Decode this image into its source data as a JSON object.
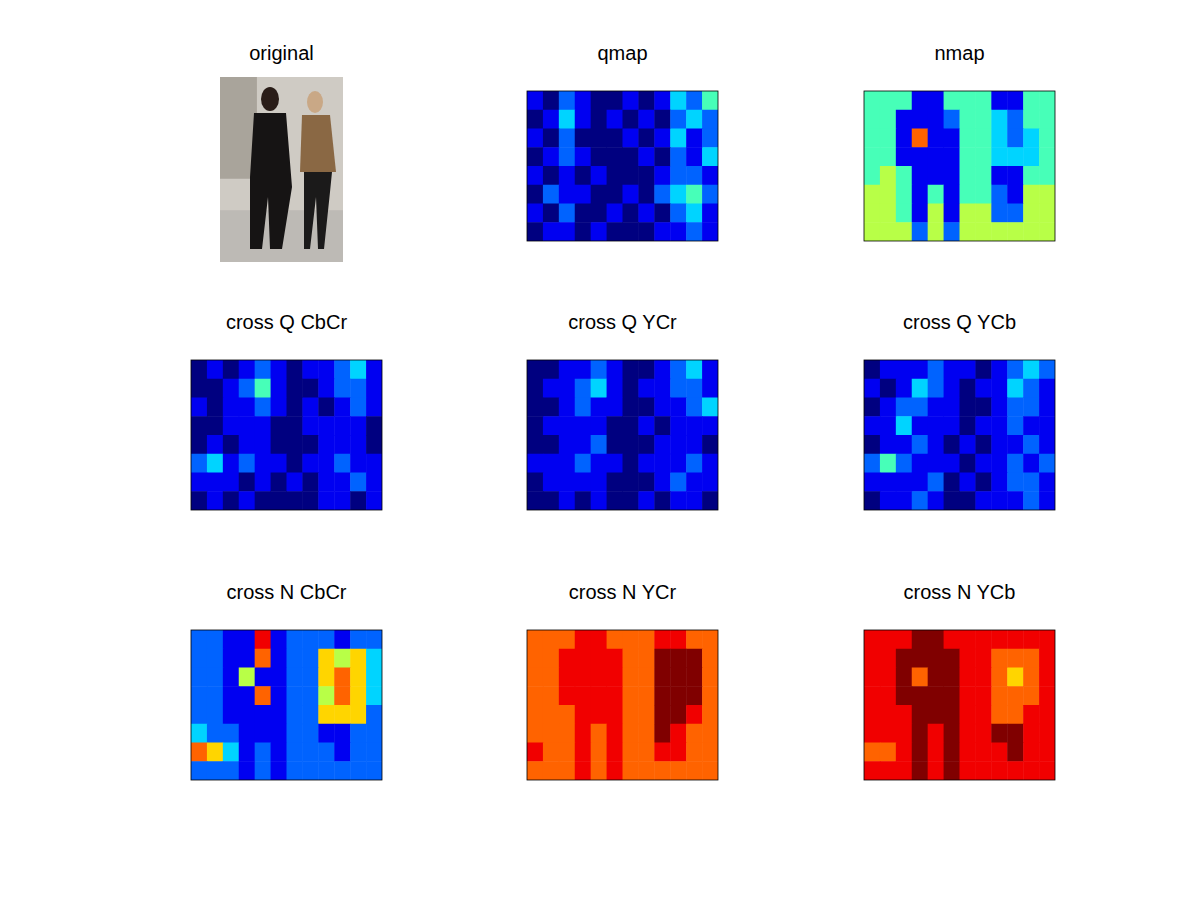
{
  "chart_data": [
    {
      "type": "image",
      "title": "original"
    },
    {
      "type": "heatmap",
      "title": "qmap",
      "tick_labels": false,
      "zlim": [
        0,
        9
      ],
      "cells": [
        [
          1,
          0,
          2,
          1,
          0,
          0,
          1,
          0,
          1,
          3,
          2,
          4
        ],
        [
          0,
          1,
          3,
          1,
          0,
          1,
          0,
          1,
          0,
          2,
          3,
          2
        ],
        [
          1,
          0,
          2,
          0,
          0,
          0,
          1,
          0,
          1,
          3,
          1,
          2
        ],
        [
          0,
          1,
          2,
          1,
          0,
          0,
          0,
          1,
          0,
          2,
          1,
          3
        ],
        [
          1,
          0,
          1,
          0,
          1,
          0,
          0,
          0,
          1,
          2,
          2,
          1
        ],
        [
          0,
          2,
          1,
          1,
          0,
          0,
          1,
          0,
          2,
          3,
          4,
          2
        ],
        [
          1,
          0,
          2,
          0,
          0,
          1,
          0,
          1,
          0,
          2,
          3,
          1
        ],
        [
          0,
          1,
          1,
          0,
          1,
          0,
          0,
          0,
          1,
          1,
          2,
          1
        ]
      ]
    },
    {
      "type": "heatmap",
      "title": "nmap",
      "tick_labels": false,
      "zlim": [
        0,
        9
      ],
      "cells": [
        [
          4,
          4,
          4,
          1,
          1,
          4,
          4,
          4,
          1,
          1,
          4,
          4
        ],
        [
          4,
          4,
          1,
          1,
          1,
          2,
          4,
          4,
          3,
          2,
          4,
          4
        ],
        [
          4,
          4,
          1,
          7,
          1,
          1,
          4,
          4,
          3,
          2,
          3,
          4
        ],
        [
          4,
          4,
          1,
          1,
          1,
          1,
          4,
          4,
          3,
          3,
          3,
          4
        ],
        [
          4,
          5,
          4,
          1,
          1,
          1,
          4,
          4,
          1,
          1,
          4,
          4
        ],
        [
          5,
          5,
          4,
          1,
          4,
          1,
          4,
          4,
          2,
          1,
          5,
          5
        ],
        [
          5,
          5,
          4,
          1,
          5,
          1,
          5,
          5,
          2,
          2,
          5,
          5
        ],
        [
          5,
          5,
          5,
          2,
          5,
          2,
          5,
          5,
          5,
          5,
          5,
          5
        ]
      ]
    },
    {
      "type": "heatmap",
      "title": "cross Q CbCr",
      "tick_labels": false,
      "zlim": [
        0,
        9
      ],
      "cells": [
        [
          0,
          1,
          0,
          1,
          2,
          1,
          0,
          1,
          1,
          2,
          3,
          1
        ],
        [
          0,
          0,
          1,
          2,
          4,
          1,
          0,
          0,
          1,
          2,
          2,
          1
        ],
        [
          1,
          0,
          1,
          1,
          2,
          1,
          0,
          1,
          0,
          1,
          2,
          1
        ],
        [
          0,
          0,
          1,
          1,
          1,
          0,
          0,
          1,
          1,
          1,
          1,
          0
        ],
        [
          0,
          1,
          0,
          1,
          1,
          0,
          0,
          0,
          1,
          1,
          1,
          0
        ],
        [
          2,
          3,
          1,
          2,
          1,
          1,
          0,
          1,
          1,
          2,
          1,
          1
        ],
        [
          1,
          1,
          1,
          0,
          1,
          0,
          1,
          0,
          1,
          1,
          2,
          1
        ],
        [
          0,
          1,
          0,
          1,
          0,
          0,
          0,
          0,
          1,
          1,
          0,
          1
        ]
      ]
    },
    {
      "type": "heatmap",
      "title": "cross Q YCr",
      "tick_labels": false,
      "zlim": [
        0,
        9
      ],
      "cells": [
        [
          0,
          0,
          1,
          1,
          2,
          1,
          0,
          0,
          1,
          2,
          3,
          1
        ],
        [
          0,
          1,
          1,
          2,
          3,
          1,
          0,
          1,
          1,
          2,
          2,
          1
        ],
        [
          0,
          0,
          1,
          2,
          1,
          1,
          0,
          0,
          1,
          1,
          2,
          3
        ],
        [
          0,
          1,
          1,
          1,
          1,
          0,
          0,
          1,
          0,
          1,
          1,
          1
        ],
        [
          0,
          0,
          1,
          1,
          2,
          0,
          0,
          0,
          1,
          1,
          1,
          0
        ],
        [
          1,
          1,
          1,
          2,
          1,
          1,
          0,
          1,
          1,
          1,
          2,
          1
        ],
        [
          0,
          1,
          1,
          1,
          1,
          0,
          0,
          0,
          1,
          2,
          1,
          1
        ],
        [
          0,
          0,
          1,
          0,
          1,
          0,
          0,
          1,
          0,
          1,
          1,
          0
        ]
      ]
    },
    {
      "type": "heatmap",
      "title": "cross Q YCb",
      "tick_labels": false,
      "zlim": [
        0,
        9
      ],
      "cells": [
        [
          0,
          1,
          1,
          1,
          2,
          1,
          1,
          0,
          1,
          2,
          3,
          2
        ],
        [
          1,
          0,
          1,
          3,
          2,
          1,
          0,
          1,
          1,
          3,
          2,
          1
        ],
        [
          0,
          1,
          2,
          2,
          1,
          1,
          0,
          0,
          1,
          2,
          2,
          1
        ],
        [
          1,
          1,
          3,
          1,
          1,
          1,
          0,
          1,
          1,
          2,
          1,
          1
        ],
        [
          0,
          1,
          1,
          2,
          1,
          0,
          1,
          0,
          1,
          1,
          2,
          1
        ],
        [
          2,
          4,
          2,
          1,
          1,
          1,
          0,
          1,
          1,
          2,
          1,
          2
        ],
        [
          1,
          1,
          1,
          1,
          2,
          0,
          1,
          0,
          1,
          2,
          2,
          1
        ],
        [
          0,
          1,
          1,
          2,
          1,
          0,
          0,
          1,
          1,
          1,
          2,
          1
        ]
      ]
    },
    {
      "type": "heatmap",
      "title": "cross N CbCr",
      "tick_labels": false,
      "zlim": [
        0,
        9
      ],
      "cells": [
        [
          2,
          2,
          1,
          1,
          8,
          1,
          2,
          2,
          2,
          1,
          2,
          2
        ],
        [
          2,
          2,
          1,
          1,
          7,
          1,
          2,
          2,
          6,
          5,
          6,
          3
        ],
        [
          2,
          2,
          1,
          5,
          1,
          1,
          2,
          2,
          6,
          7,
          6,
          3
        ],
        [
          2,
          2,
          1,
          1,
          7,
          1,
          2,
          2,
          5,
          7,
          6,
          3
        ],
        [
          2,
          2,
          1,
          1,
          1,
          1,
          2,
          2,
          6,
          6,
          6,
          2
        ],
        [
          3,
          2,
          2,
          1,
          1,
          1,
          2,
          2,
          1,
          1,
          2,
          2
        ],
        [
          7,
          6,
          3,
          1,
          2,
          1,
          2,
          2,
          2,
          1,
          2,
          2
        ],
        [
          2,
          2,
          2,
          1,
          2,
          1,
          2,
          2,
          2,
          2,
          2,
          2
        ]
      ]
    },
    {
      "type": "heatmap",
      "title": "cross N YCr",
      "tick_labels": false,
      "zlim": [
        0,
        9
      ],
      "cells": [
        [
          7,
          7,
          7,
          8,
          8,
          7,
          7,
          7,
          8,
          8,
          7,
          7
        ],
        [
          7,
          7,
          8,
          8,
          8,
          8,
          7,
          7,
          9,
          9,
          9,
          7
        ],
        [
          7,
          7,
          8,
          8,
          8,
          8,
          7,
          7,
          9,
          9,
          9,
          7
        ],
        [
          7,
          7,
          8,
          8,
          8,
          8,
          7,
          7,
          9,
          9,
          9,
          7
        ],
        [
          7,
          7,
          7,
          8,
          8,
          8,
          7,
          7,
          9,
          9,
          8,
          7
        ],
        [
          7,
          7,
          7,
          8,
          7,
          8,
          7,
          7,
          9,
          8,
          7,
          7
        ],
        [
          8,
          7,
          7,
          8,
          7,
          8,
          7,
          7,
          8,
          8,
          7,
          7
        ],
        [
          7,
          7,
          7,
          8,
          7,
          8,
          7,
          7,
          7,
          7,
          7,
          7
        ]
      ]
    },
    {
      "type": "heatmap",
      "title": "cross N YCb",
      "tick_labels": false,
      "zlim": [
        0,
        9
      ],
      "cells": [
        [
          8,
          8,
          8,
          9,
          9,
          8,
          8,
          8,
          8,
          8,
          8,
          8
        ],
        [
          8,
          8,
          9,
          9,
          9,
          9,
          8,
          8,
          7,
          7,
          7,
          8
        ],
        [
          8,
          8,
          9,
          7,
          9,
          9,
          8,
          8,
          7,
          6,
          7,
          8
        ],
        [
          8,
          8,
          9,
          9,
          9,
          9,
          8,
          8,
          7,
          7,
          7,
          8
        ],
        [
          8,
          8,
          8,
          9,
          9,
          9,
          8,
          8,
          7,
          7,
          8,
          8
        ],
        [
          8,
          8,
          8,
          9,
          8,
          9,
          8,
          8,
          9,
          9,
          8,
          8
        ],
        [
          7,
          7,
          8,
          9,
          8,
          9,
          8,
          8,
          8,
          9,
          8,
          8
        ],
        [
          8,
          8,
          8,
          9,
          8,
          9,
          8,
          8,
          8,
          8,
          8,
          8
        ]
      ]
    }
  ]
}
